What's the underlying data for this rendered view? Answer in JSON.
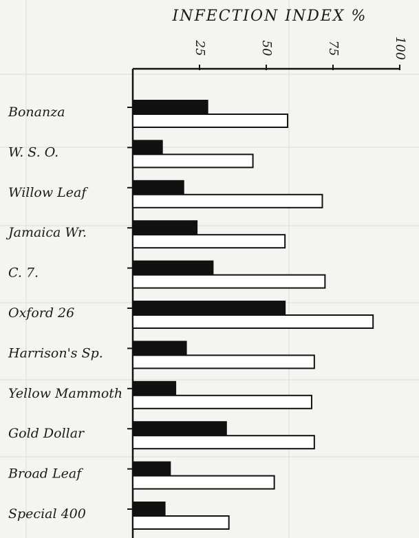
{
  "chart_data": {
    "type": "bar",
    "orientation": "horizontal",
    "title": "INFECTION INDEX %",
    "xlim": [
      0,
      100
    ],
    "x_ticks": [
      "25",
      "50",
      "75",
      "100"
    ],
    "x_tick_values": [
      25,
      50,
      75,
      100
    ],
    "categories": [
      "Bonanza",
      "W. S. O.",
      "Willow Leaf",
      "Jamaica Wr.",
      "C. 7.",
      "Oxford 26",
      "Harrison's Sp.",
      "Yellow Mammoth",
      "Gold Dollar",
      "Broad Leaf",
      "Special 400"
    ],
    "series": [
      {
        "fill": "#111111",
        "values": [
          28,
          11,
          19,
          24,
          30,
          57,
          20,
          16,
          35,
          14,
          12
        ]
      },
      {
        "fill": "#ffffff",
        "values": [
          58,
          45,
          71,
          57,
          72,
          90,
          68,
          67,
          68,
          53,
          36
        ]
      }
    ],
    "grid": true
  }
}
